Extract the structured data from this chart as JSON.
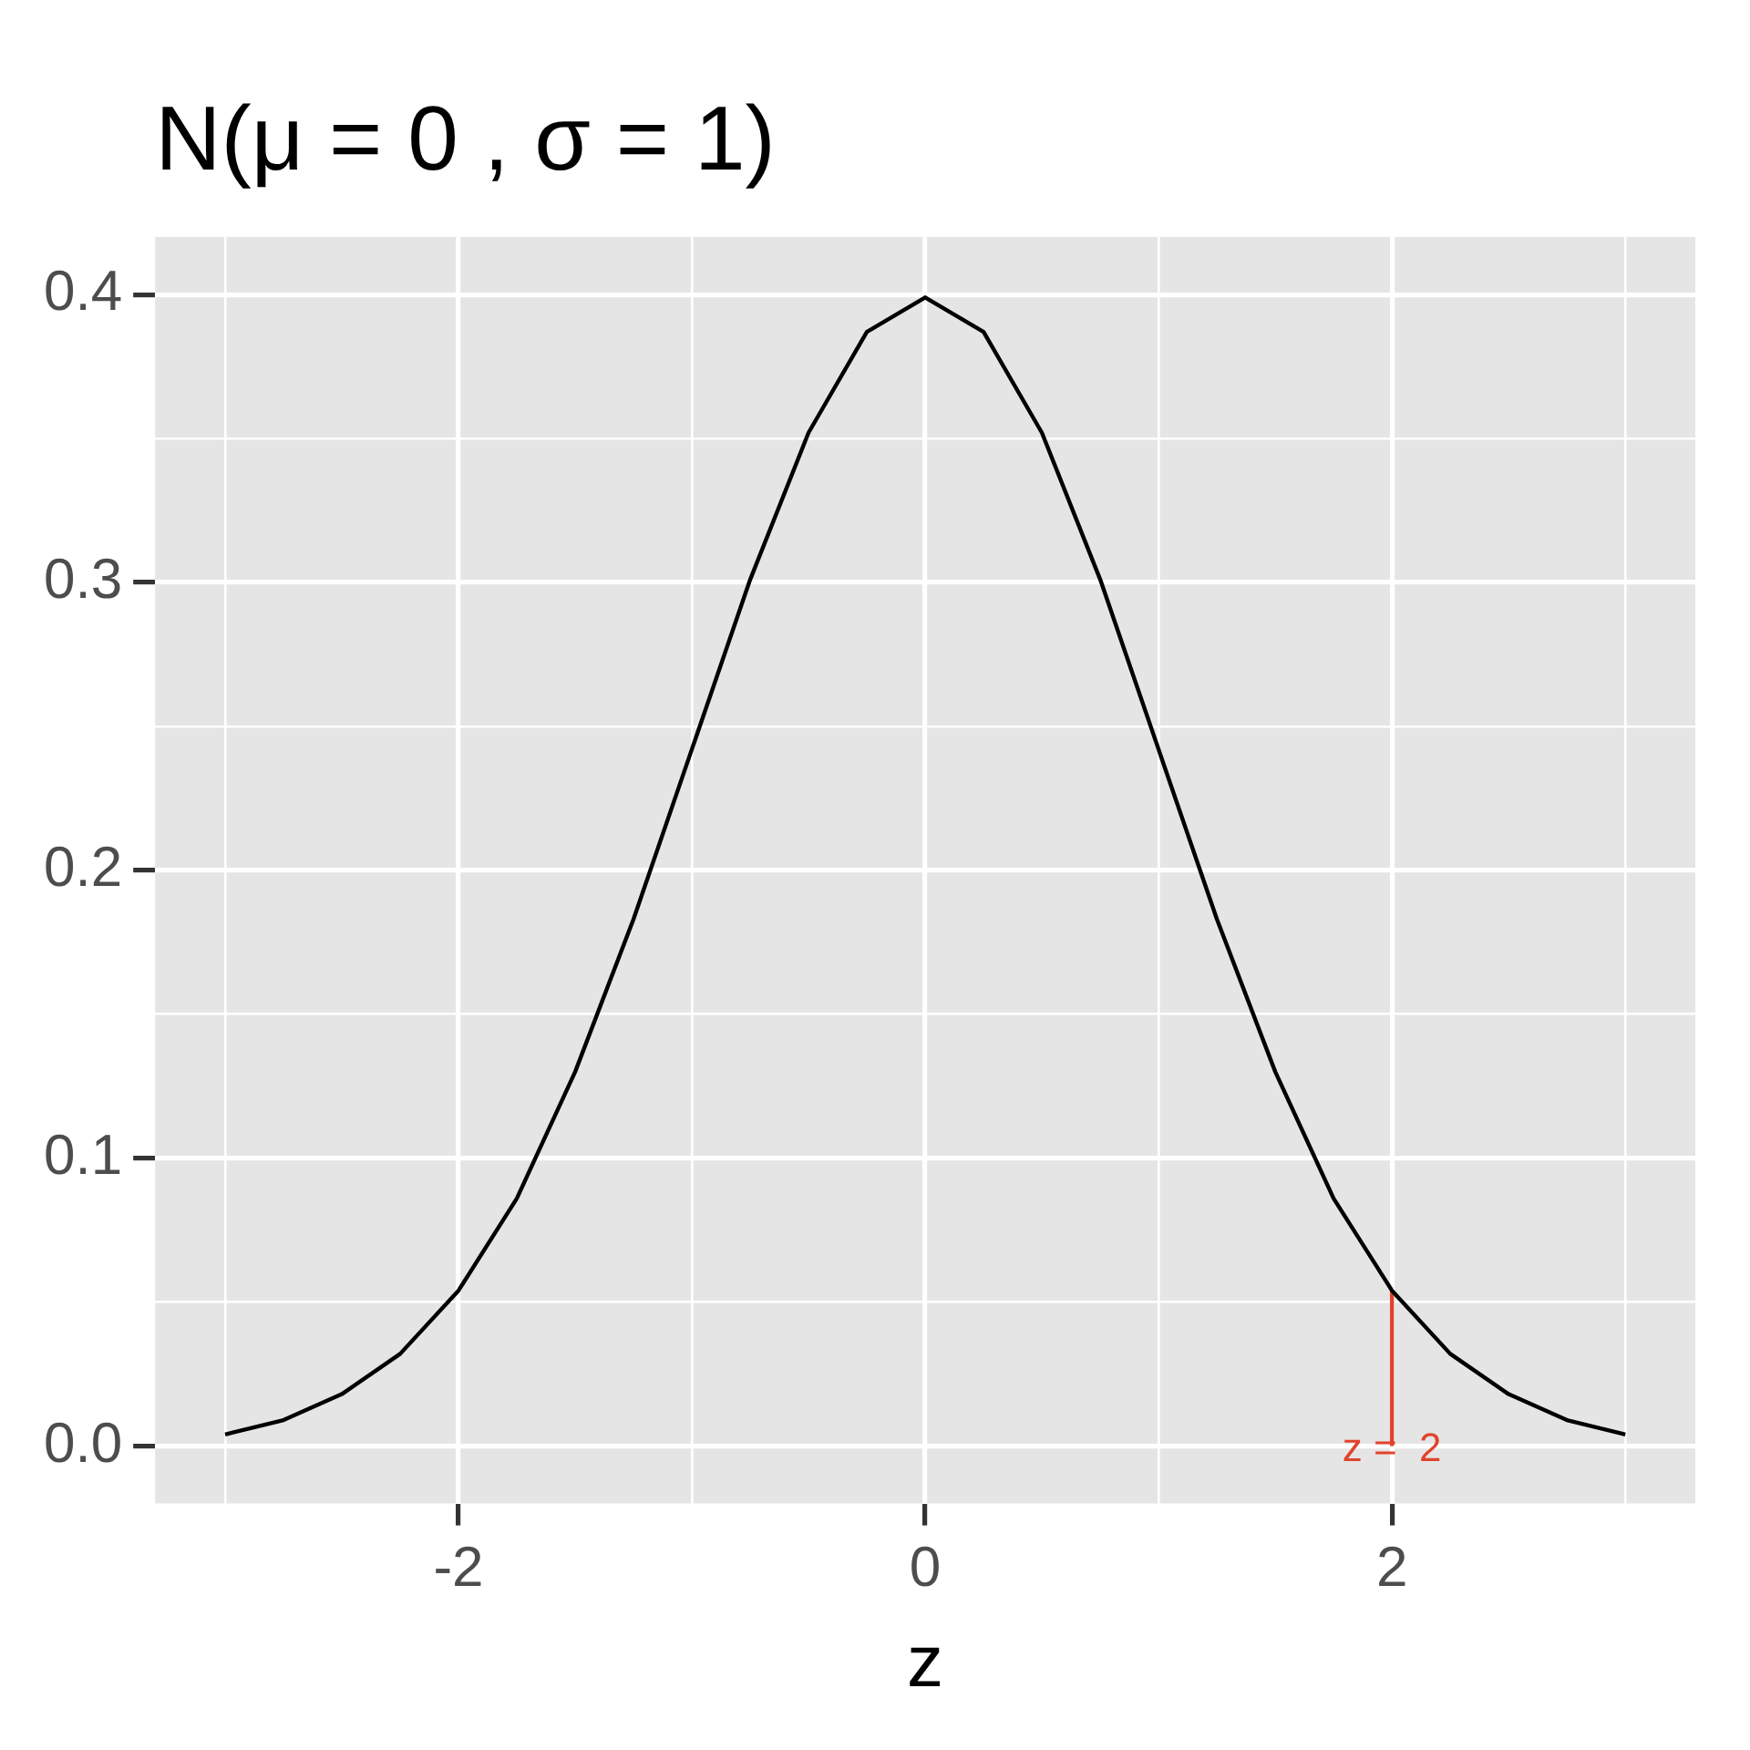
{
  "chart_data": {
    "type": "line",
    "title": "N(μ = 0 , σ = 1)",
    "xlabel": "z",
    "x": [
      -3,
      -2.75,
      -2.5,
      -2.25,
      -2,
      -1.75,
      -1.5,
      -1.25,
      -1,
      -0.75,
      -0.5,
      -0.25,
      0,
      0.25,
      0.5,
      0.75,
      1,
      1.25,
      1.5,
      1.75,
      2,
      2.25,
      2.5,
      2.75,
      3
    ],
    "series": [
      {
        "color": "#000000",
        "values": [
          0.004,
          0.009,
          0.018,
          0.032,
          0.054,
          0.086,
          0.13,
          0.183,
          0.242,
          0.301,
          0.352,
          0.387,
          0.399,
          0.387,
          0.352,
          0.301,
          0.242,
          0.183,
          0.13,
          0.086,
          0.054,
          0.032,
          0.018,
          0.009,
          0.004
        ]
      },
      {
        "color": "#e0442c",
        "x": [
          2,
          2
        ],
        "values": [
          0,
          0.054
        ]
      }
    ],
    "annotations": [
      {
        "text": "z =  2",
        "x": 2,
        "y": 0
      }
    ],
    "xlim": [
      -3.3,
      3.3
    ],
    "xticks": [
      {
        "value": -3,
        "label": null
      },
      -2,
      {
        "value": -1,
        "label": null
      },
      0,
      {
        "value": 1,
        "label": null
      },
      2,
      {
        "value": 3,
        "label": null
      }
    ],
    "ylim": [
      -0.02,
      0.42
    ],
    "yticks": [
      {
        "value": 0,
        "label": "0.0"
      },
      {
        "value": 0.05,
        "label": null
      },
      0.1,
      {
        "value": 0.15,
        "label": null
      },
      0.2,
      {
        "value": 0.25,
        "label": null
      },
      0.3,
      {
        "value": 0.35,
        "label": null
      },
      0.4
    ],
    "grid": true
  }
}
